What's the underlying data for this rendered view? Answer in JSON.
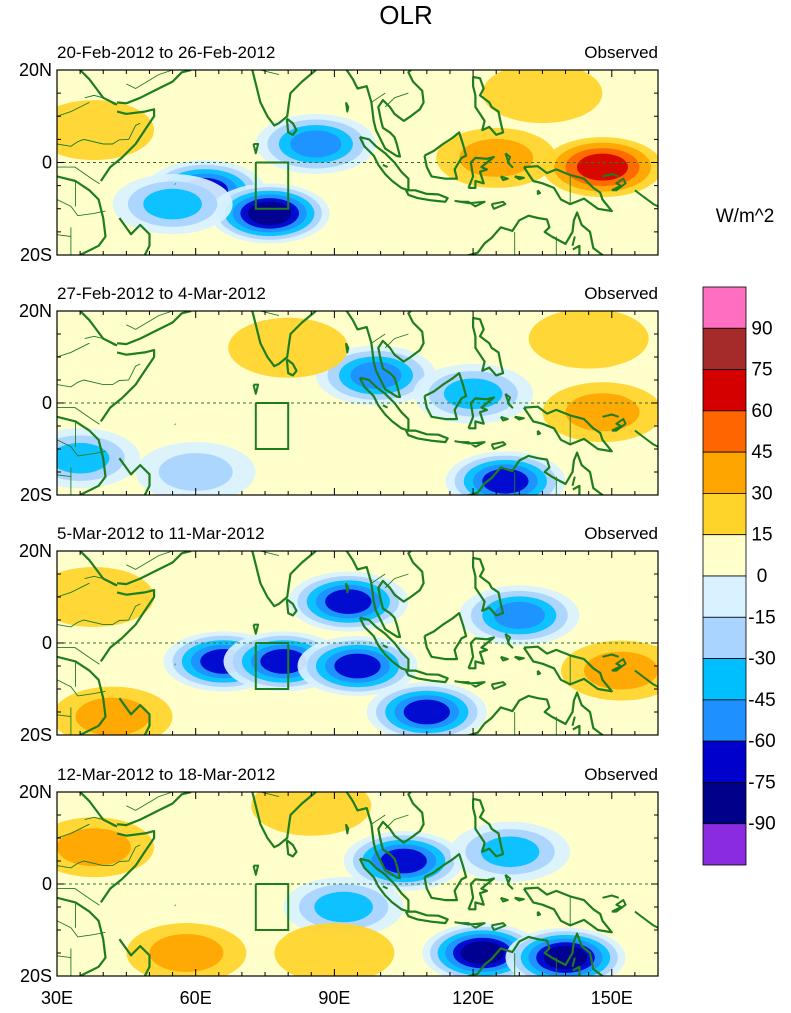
{
  "figure": {
    "title": "OLR",
    "units_label": "W/m^2"
  },
  "chart_data": {
    "type": "heatmap",
    "variable": "OLR anomaly",
    "units": "W/m^2",
    "xlim": [
      30,
      160
    ],
    "ylim": [
      -20,
      20
    ],
    "x_ticks": [
      {
        "value": 30,
        "label": "30E"
      },
      {
        "value": 60,
        "label": "60E"
      },
      {
        "value": 90,
        "label": "90E"
      },
      {
        "value": 120,
        "label": "120E"
      },
      {
        "value": 150,
        "label": "150E"
      }
    ],
    "y_ticks": [
      {
        "value": 20,
        "label": "20N"
      },
      {
        "value": 0,
        "label": "0"
      },
      {
        "value": -20,
        "label": "20S"
      }
    ],
    "colorbar": {
      "labels": [
        "90",
        "75",
        "60",
        "45",
        "30",
        "15",
        "0",
        "-15",
        "-30",
        "-45",
        "-60",
        "-75",
        "-90"
      ],
      "colors": [
        "#ff6ec0",
        "#a52a2a",
        "#d40000",
        "#ff6600",
        "#ffa500",
        "#ffd42a",
        "#ffffcc",
        "#d9f2ff",
        "#a8d4ff",
        "#00bfff",
        "#1e90ff",
        "#0000cd",
        "#00008b",
        "#8a2be2"
      ]
    },
    "panels": [
      {
        "period": "20-Feb-2012 to 26-Feb-2012",
        "label": "Observed",
        "features": [
          {
            "kind": "low",
            "lon": 62,
            "lat": -6,
            "value": -75
          },
          {
            "kind": "low",
            "lon": 76,
            "lat": -11,
            "value": -90
          },
          {
            "kind": "low",
            "lon": 86,
            "lat": 4,
            "value": -60
          },
          {
            "kind": "low",
            "lon": 55,
            "lat": -9,
            "value": -45
          },
          {
            "kind": "high",
            "lon": 148,
            "lat": -1,
            "value": 60
          },
          {
            "kind": "high",
            "lon": 125,
            "lat": 1,
            "value": 30
          },
          {
            "kind": "high",
            "lon": 135,
            "lat": 15,
            "value": 15
          },
          {
            "kind": "high",
            "lon": 38,
            "lat": 7,
            "value": 15
          }
        ]
      },
      {
        "period": "27-Feb-2012 to 4-Mar-2012",
        "label": "Observed",
        "features": [
          {
            "kind": "low",
            "lon": 99,
            "lat": 6,
            "value": -60
          },
          {
            "kind": "low",
            "lon": 120,
            "lat": 2,
            "value": -45
          },
          {
            "kind": "low",
            "lon": 127,
            "lat": -17,
            "value": -75
          },
          {
            "kind": "low",
            "lon": 35,
            "lat": -12,
            "value": -45
          },
          {
            "kind": "low",
            "lon": 60,
            "lat": -15,
            "value": -30
          },
          {
            "kind": "high",
            "lon": 148,
            "lat": -2,
            "value": 30
          },
          {
            "kind": "high",
            "lon": 145,
            "lat": 14,
            "value": 15
          },
          {
            "kind": "high",
            "lon": 80,
            "lat": 12,
            "value": 0
          }
        ]
      },
      {
        "period": "5-Mar-2012 to 11-Mar-2012",
        "label": "Observed",
        "features": [
          {
            "kind": "low",
            "lon": 66,
            "lat": -4,
            "value": -75
          },
          {
            "kind": "low",
            "lon": 79,
            "lat": -4,
            "value": -75
          },
          {
            "kind": "low",
            "lon": 95,
            "lat": -5,
            "value": -75
          },
          {
            "kind": "low",
            "lon": 93,
            "lat": 9,
            "value": -75
          },
          {
            "kind": "low",
            "lon": 110,
            "lat": -15,
            "value": -75
          },
          {
            "kind": "low",
            "lon": 130,
            "lat": 6,
            "value": -60
          },
          {
            "kind": "high",
            "lon": 152,
            "lat": -6,
            "value": 30
          },
          {
            "kind": "high",
            "lon": 42,
            "lat": -16,
            "value": 30
          },
          {
            "kind": "high",
            "lon": 38,
            "lat": 10,
            "value": 15
          }
        ]
      },
      {
        "period": "12-Mar-2012 to 18-Mar-2012",
        "label": "Observed",
        "features": [
          {
            "kind": "low",
            "lon": 122,
            "lat": -15,
            "value": -90
          },
          {
            "kind": "low",
            "lon": 140,
            "lat": -16,
            "value": -90
          },
          {
            "kind": "low",
            "lon": 105,
            "lat": 5,
            "value": -75
          },
          {
            "kind": "low",
            "lon": 128,
            "lat": 7,
            "value": -45
          },
          {
            "kind": "low",
            "lon": 92,
            "lat": -5,
            "value": -45
          },
          {
            "kind": "high",
            "lon": 38,
            "lat": 8,
            "value": 30
          },
          {
            "kind": "high",
            "lon": 58,
            "lat": -15,
            "value": 30
          },
          {
            "kind": "high",
            "lon": 85,
            "lat": 17,
            "value": 15
          },
          {
            "kind": "high",
            "lon": 90,
            "lat": -15,
            "value": 15
          }
        ]
      }
    ]
  }
}
